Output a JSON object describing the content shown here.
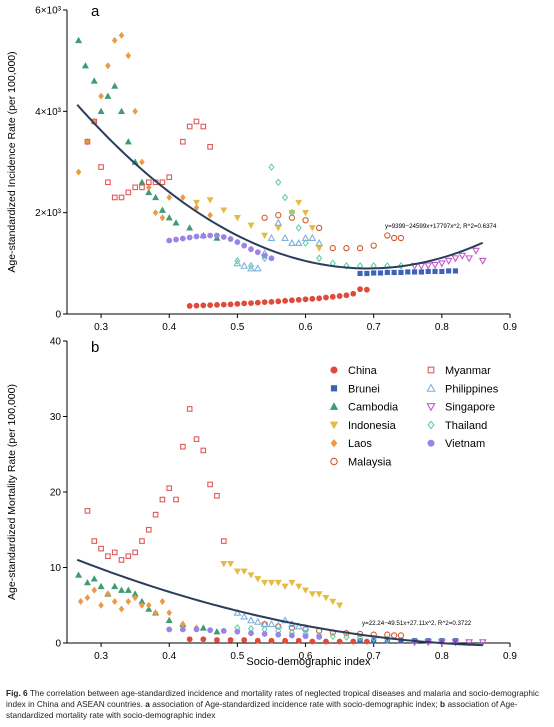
{
  "figure": {
    "caption": {
      "label": "Fig. 6",
      "text": "The correlation between age-standardized incidence and mortality rates of neglected tropical diseases and malaria and socio-demographic index in China and ASEAN countries.",
      "part_a_letter": "a",
      "part_a_text": "association of Age-standardized incidence rate with socio-demographic index;",
      "part_b_letter": "b",
      "part_b_text": "association of Age-standardized mortality rate with socio-demographic index"
    }
  },
  "chart_data": [
    {
      "panel": "a",
      "type": "scatter",
      "ylabel": "Age-standardized Incidence Rate (per 100,000)",
      "xlim": [
        0.25,
        0.9
      ],
      "ylim": [
        0,
        6000
      ],
      "x_ticks": [
        "0.3",
        "0.4",
        "0.5",
        "0.6",
        "0.7",
        "0.8",
        "0.9"
      ],
      "y_ticks": [
        {
          "value": 0,
          "label": "0"
        },
        {
          "value": 2000,
          "label": "2×10³"
        },
        {
          "value": 4000,
          "label": "4×10³"
        },
        {
          "value": 6000,
          "label": "6×10³"
        }
      ],
      "fit": {
        "a": 9399,
        "b": -24599,
        "c": 17797,
        "x_range": [
          0.265,
          0.86
        ]
      },
      "annotation": "y=9399−24599x+17797x^2, R^2=0.6374",
      "series": [
        {
          "name": "China",
          "key": "china",
          "x": [
            0.43,
            0.44,
            0.45,
            0.46,
            0.47,
            0.48,
            0.49,
            0.5,
            0.51,
            0.52,
            0.53,
            0.54,
            0.55,
            0.56,
            0.57,
            0.58,
            0.59,
            0.6,
            0.61,
            0.62,
            0.63,
            0.64,
            0.65,
            0.66,
            0.67,
            0.68,
            0.69
          ],
          "y": [
            160,
            165,
            170,
            175,
            180,
            185,
            190,
            200,
            210,
            215,
            225,
            235,
            240,
            250,
            260,
            270,
            280,
            290,
            300,
            310,
            325,
            340,
            355,
            370,
            400,
            490,
            480
          ]
        },
        {
          "name": "Brunei",
          "key": "brunei",
          "x": [
            0.68,
            0.69,
            0.7,
            0.71,
            0.72,
            0.73,
            0.74,
            0.75,
            0.76,
            0.77,
            0.78,
            0.79,
            0.8,
            0.81,
            0.82
          ],
          "y": [
            800,
            800,
            810,
            810,
            820,
            820,
            820,
            830,
            830,
            830,
            840,
            840,
            840,
            850,
            850
          ]
        },
        {
          "name": "Cambodia",
          "key": "cambodia",
          "x": [
            0.267,
            0.277,
            0.29,
            0.3,
            0.31,
            0.32,
            0.33,
            0.34,
            0.35,
            0.36,
            0.37,
            0.38,
            0.39,
            0.4,
            0.41,
            0.43,
            0.45,
            0.47
          ],
          "y": [
            5400,
            4900,
            4600,
            4000,
            4300,
            4500,
            4000,
            3400,
            3000,
            2600,
            2400,
            2300,
            2050,
            1900,
            1800,
            1700,
            1550,
            1500
          ]
        },
        {
          "name": "Indonesia",
          "key": "indonesia",
          "x": [
            0.44,
            0.46,
            0.48,
            0.5,
            0.52,
            0.54,
            0.56,
            0.58,
            0.59,
            0.6,
            0.61,
            0.62
          ],
          "y": [
            2200,
            2250,
            2050,
            1900,
            1750,
            1550,
            1700,
            2000,
            2200,
            2000,
            1700,
            1300
          ]
        },
        {
          "name": "Laos",
          "key": "laos",
          "x": [
            0.267,
            0.28,
            0.29,
            0.3,
            0.31,
            0.32,
            0.33,
            0.34,
            0.35,
            0.36,
            0.37,
            0.38,
            0.39,
            0.4,
            0.42,
            0.44,
            0.46
          ],
          "y": [
            2800,
            3400,
            3800,
            4300,
            4900,
            5400,
            5500,
            5100,
            4000,
            3000,
            2500,
            2000,
            1900,
            2300,
            2300,
            2100,
            1950
          ]
        },
        {
          "name": "Malaysia",
          "key": "malaysia",
          "x": [
            0.54,
            0.56,
            0.58,
            0.6,
            0.62,
            0.64,
            0.66,
            0.68,
            0.7,
            0.72,
            0.73,
            0.74
          ],
          "y": [
            1900,
            1950,
            1900,
            1850,
            1700,
            1300,
            1300,
            1300,
            1350,
            1550,
            1500,
            1500
          ]
        },
        {
          "name": "Myanmar",
          "key": "myanmar",
          "x": [
            0.28,
            0.29,
            0.3,
            0.31,
            0.32,
            0.33,
            0.34,
            0.35,
            0.36,
            0.37,
            0.38,
            0.39,
            0.4,
            0.42,
            0.43,
            0.44,
            0.45,
            0.46
          ],
          "y": [
            3400,
            3800,
            2900,
            2600,
            2300,
            2300,
            2400,
            2500,
            2500,
            2600,
            2600,
            2600,
            2700,
            3400,
            3700,
            3800,
            3700,
            3300
          ]
        },
        {
          "name": "Philippines",
          "key": "philippines",
          "x": [
            0.5,
            0.51,
            0.52,
            0.53,
            0.54,
            0.55,
            0.56,
            0.57,
            0.58,
            0.59,
            0.6,
            0.61,
            0.62
          ],
          "y": [
            1000,
            950,
            900,
            900,
            1200,
            1500,
            1800,
            1500,
            1400,
            1400,
            1500,
            1500,
            1400
          ]
        },
        {
          "name": "Singapore",
          "key": "singapore",
          "x": [
            0.76,
            0.77,
            0.78,
            0.79,
            0.8,
            0.81,
            0.82,
            0.83,
            0.84,
            0.85,
            0.86
          ],
          "y": [
            950,
            950,
            960,
            970,
            1000,
            1050,
            1100,
            1150,
            1100,
            1250,
            1050
          ]
        },
        {
          "name": "Thailand",
          "key": "thailand",
          "x": [
            0.5,
            0.52,
            0.54,
            0.55,
            0.56,
            0.57,
            0.58,
            0.59,
            0.6,
            0.62,
            0.64,
            0.66,
            0.68,
            0.7,
            0.72,
            0.74
          ],
          "y": [
            1050,
            950,
            1100,
            2900,
            2600,
            2300,
            2000,
            1700,
            1400,
            1100,
            1000,
            950,
            950,
            950,
            950,
            950
          ]
        },
        {
          "name": "Vietnam",
          "key": "vietnam",
          "x": [
            0.4,
            0.41,
            0.42,
            0.43,
            0.44,
            0.45,
            0.46,
            0.47,
            0.48,
            0.49,
            0.5,
            0.51,
            0.52,
            0.53,
            0.54,
            0.55
          ],
          "y": [
            1450,
            1470,
            1490,
            1510,
            1530,
            1540,
            1550,
            1550,
            1520,
            1480,
            1420,
            1350,
            1280,
            1220,
            1150,
            1100
          ]
        }
      ]
    },
    {
      "panel": "b",
      "type": "scatter",
      "ylabel": "Age-standardized Mortality Rate (per 100,000)",
      "xlabel": "Socio-demographic index",
      "xlim": [
        0.25,
        0.9
      ],
      "ylim": [
        0,
        40
      ],
      "x_ticks": [
        "0.3",
        "0.4",
        "0.5",
        "0.6",
        "0.7",
        "0.8",
        "0.9"
      ],
      "y_ticks": [
        {
          "value": 0,
          "label": "0"
        },
        {
          "value": 10,
          "label": "10"
        },
        {
          "value": 20,
          "label": "20"
        },
        {
          "value": 30,
          "label": "30"
        },
        {
          "value": 40,
          "label": "40"
        }
      ],
      "fit": {
        "a": 22.24,
        "b": -49.51,
        "c": 27.11,
        "x_range": [
          0.265,
          0.86
        ]
      },
      "annotation": "y=22.24−49.51x+27.11x^2, R^2=0.3722",
      "legend": {
        "placement": "top-right",
        "columns": 2
      },
      "series": [
        {
          "name": "China",
          "key": "china",
          "x": [
            0.43,
            0.45,
            0.47,
            0.49,
            0.51,
            0.53,
            0.55,
            0.57,
            0.59,
            0.61,
            0.63,
            0.65,
            0.67,
            0.69
          ],
          "y": [
            0.5,
            0.5,
            0.4,
            0.4,
            0.4,
            0.3,
            0.3,
            0.3,
            0.3,
            0.2,
            0.2,
            0.2,
            0.2,
            0.2
          ]
        },
        {
          "name": "Brunei",
          "key": "brunei",
          "x": [
            0.68,
            0.7,
            0.72,
            0.74,
            0.76,
            0.78,
            0.8,
            0.82
          ],
          "y": [
            0.3,
            0.3,
            0.3,
            0.3,
            0.3,
            0.3,
            0.3,
            0.3
          ]
        },
        {
          "name": "Cambodia",
          "key": "cambodia",
          "x": [
            0.267,
            0.28,
            0.29,
            0.3,
            0.31,
            0.32,
            0.33,
            0.34,
            0.35,
            0.36,
            0.37,
            0.38,
            0.4,
            0.42,
            0.45,
            0.47
          ],
          "y": [
            9,
            8,
            8.5,
            7.5,
            6.5,
            7.5,
            7,
            7,
            6.5,
            5.5,
            4.5,
            4,
            3,
            2.5,
            2,
            1.5
          ]
        },
        {
          "name": "Indonesia",
          "key": "indonesia",
          "x": [
            0.48,
            0.49,
            0.5,
            0.51,
            0.52,
            0.53,
            0.54,
            0.55,
            0.56,
            0.57,
            0.58,
            0.59,
            0.6,
            0.61,
            0.62,
            0.63,
            0.64,
            0.65
          ],
          "y": [
            10.5,
            10.5,
            9.5,
            9.5,
            9,
            8.5,
            8,
            8,
            8,
            7.5,
            8,
            7.5,
            7,
            6.5,
            6.5,
            6,
            5.5,
            5
          ]
        },
        {
          "name": "Laos",
          "key": "laos",
          "x": [
            0.27,
            0.28,
            0.29,
            0.3,
            0.31,
            0.32,
            0.33,
            0.34,
            0.35,
            0.36,
            0.37,
            0.38,
            0.39,
            0.4,
            0.42,
            0.44
          ],
          "y": [
            5.5,
            6,
            7,
            5,
            6.5,
            5.5,
            4.5,
            5.5,
            6,
            5,
            5,
            4,
            5.5,
            4,
            2.5,
            2
          ]
        },
        {
          "name": "Malaysia",
          "key": "malaysia",
          "x": [
            0.54,
            0.56,
            0.58,
            0.6,
            0.62,
            0.64,
            0.66,
            0.68,
            0.7,
            0.72,
            0.73,
            0.74
          ],
          "y": [
            2.5,
            2.2,
            2,
            1.8,
            1.6,
            1.4,
            1.3,
            1.2,
            1.1,
            1.1,
            1,
            1
          ]
        },
        {
          "name": "Myanmar",
          "key": "myanmar",
          "x": [
            0.28,
            0.29,
            0.3,
            0.31,
            0.32,
            0.33,
            0.34,
            0.35,
            0.36,
            0.37,
            0.38,
            0.39,
            0.4,
            0.41,
            0.42,
            0.43,
            0.44,
            0.45,
            0.46,
            0.47,
            0.48
          ],
          "y": [
            17.5,
            13.5,
            12.5,
            11.5,
            12,
            11,
            11.5,
            12,
            13.5,
            15,
            17,
            19,
            20.5,
            19,
            26,
            31,
            27,
            25.5,
            21,
            19.5,
            13.5
          ]
        },
        {
          "name": "Philippines",
          "key": "philippines",
          "x": [
            0.5,
            0.51,
            0.52,
            0.53,
            0.54,
            0.55,
            0.56,
            0.57,
            0.58,
            0.59,
            0.6
          ],
          "y": [
            4,
            3.5,
            3,
            2.8,
            2.5,
            2.5,
            2.3,
            3,
            2.5,
            2.2,
            2
          ]
        },
        {
          "name": "Singapore",
          "key": "singapore",
          "x": [
            0.76,
            0.78,
            0.8,
            0.82,
            0.84,
            0.86
          ],
          "y": [
            0.1,
            0.1,
            0.1,
            0.1,
            0.1,
            0.1
          ]
        },
        {
          "name": "Thailand",
          "key": "thailand",
          "x": [
            0.5,
            0.52,
            0.54,
            0.56,
            0.58,
            0.6,
            0.62,
            0.64,
            0.66,
            0.68,
            0.7,
            0.72
          ],
          "y": [
            2,
            1.9,
            1.8,
            1.6,
            1.4,
            1.2,
            1,
            0.9,
            0.8,
            0.7,
            0.6,
            0.5
          ]
        },
        {
          "name": "Vietnam",
          "key": "vietnam",
          "x": [
            0.4,
            0.42,
            0.44,
            0.46,
            0.48,
            0.5,
            0.52,
            0.54,
            0.56,
            0.58,
            0.6,
            0.62
          ],
          "y": [
            1.8,
            1.8,
            1.8,
            1.7,
            1.6,
            1.5,
            1.3,
            1.2,
            1.1,
            1,
            0.9,
            0.8
          ]
        }
      ]
    }
  ],
  "series_styles": {
    "china": {
      "color": "#e04a3a",
      "marker": "circle-filled"
    },
    "brunei": {
      "color": "#3d62b8",
      "marker": "square-filled"
    },
    "cambodia": {
      "color": "#3f9b72",
      "marker": "triangle-up-filled"
    },
    "indonesia": {
      "color": "#e4bb45",
      "marker": "triangle-down-filled"
    },
    "laos": {
      "color": "#ec9a45",
      "marker": "diamond-filled"
    },
    "malaysia": {
      "color": "#d8562a",
      "marker": "circle-open"
    },
    "myanmar": {
      "color": "#e05a5a",
      "marker": "square-open"
    },
    "philippines": {
      "color": "#7fb0de",
      "marker": "triangle-up-open"
    },
    "singapore": {
      "color": "#c05bc9",
      "marker": "triangle-down-open"
    },
    "thailand": {
      "color": "#64d0a8",
      "marker": "diamond-open"
    },
    "vietnam": {
      "color": "#9a84e8",
      "marker": "circle-filled"
    }
  },
  "fit_line_color": "#2b3d5c"
}
